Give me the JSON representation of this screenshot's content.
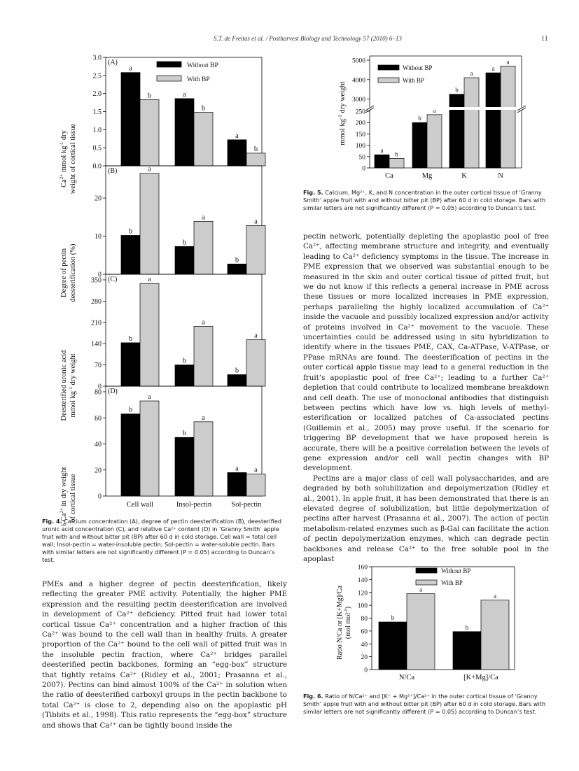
{
  "header": {
    "running_head": "S.T. de Freitas et al. / Postharvest Biology and Technology 57 (2010) 6–13",
    "page_number": "11"
  },
  "fig4": {
    "caption_label": "Fig. 4.",
    "caption_text": "Calcium concentration (A), degree of pectin deesterification (B), deesterified uronic acid concentration (C), and relative Ca²⁺ content (D) in ‘Granny Smith’ apple fruit with and without bitter pit (BP) after 60 d in cold storage. Cell wall = total cell wall; Insol-pectin = water-insoluble pectin; Sol-pectin = water-soluble pectin. Bars with similar letters are not significantly different (P = 0.05) according to Duncan’s test.",
    "legend": [
      "Without BP",
      "With BP"
    ]
  },
  "fig5": {
    "caption_label": "Fig. 5.",
    "caption_text": "Calcium, Mg²⁺, K, and N concentration in the outer cortical tissue of ‘Granny Smith’ apple fruit with and without bitter pit (BP) after 60 d in cold storage. Bars with similar letters are not significantly different (P = 0.05) according to Duncan’s test.",
    "legend": [
      "Without BP",
      "With BP"
    ]
  },
  "fig6": {
    "caption_label": "Fig. 6.",
    "caption_text": "Ratio of N/Ca²⁺ and [K⁺ + Mg²⁺]/Ca²⁺ in the outer cortical tissue of ‘Granny Smith’ apple fruit with and without bitter pit (BP) after 60 d in cold storage. Bars with similar letters are not significantly different (P = 0.05) according to Duncan’s test.",
    "legend": [
      "Without BP",
      "With BP"
    ]
  },
  "text": {
    "left_col": [
      "PMEs and a higher degree of pectin deesterification, likely reflecting the greater PME activity. Potentially, the higher PME expression and the resulting pectin deesterification are involved in development of Ca²⁺ deficiency. Pitted fruit had lower total cortical tissue Ca²⁺ concentration and a higher fraction of this Ca²⁺ was bound to the cell wall than in healthy fruits. A greater proportion of the Ca²⁺ bound to the cell wall of pitted fruit was in the insoluble pectin fraction, where Ca²⁺ bridges parallel deesterified pectin backbones, forming an “egg-box” structure that tightly retains Ca²⁺ (Ridley et al., 2001; Prasanna et al., 2007). Pectins can bind almost 100% of the Ca²⁺ in solution when the ratio of deesterified carboxyl groups in the pectin backbone to total Ca²⁺ is close to 2, depending also on the apoplastic pH (Tibbits et al., 1998). This ratio represents the “egg-box” structure and shows that Ca²⁺ can be tightly bound inside the"
    ],
    "right_col": [
      "pectin network, potentially depleting the apoplastic pool of free Ca²⁺, affecting membrane structure and integrity, and eventually leading to Ca²⁺ deficiency symptoms in the tissue. The increase in PME expression that we observed was substantial enough to be measured in the skin and outer cortical tissue of pitted fruit, but we do not know if this reflects a general increase in PME across these tissues or more localized increases in PME expression, perhaps paralleling the highly localized accumulation of Ca²⁺ inside the vacuole and possibly localized expression and/or activity of proteins involved in Ca²⁺ movement to the vacuole. These uncertainties could be addressed using in situ hybridization to identify where in the tissues PME, CAX, Ca-ATPase, V-ATPase, or PPase mRNAs are found. The deesterification of pectins in the outer cortical apple tissue may lead to a general reduction in the fruit’s apoplastic pool of free Ca²⁺; leading to a further Ca²⁺ depletion that could contribute to localized membrane breakdown and cell death. The use of monoclonal antibodies that distinguish between pectins which have low vs. high levels of methyl-esterification or localized patches of Ca-associated pectins (Guillemin et al., 2005) may prove useful. If the scenario for triggering BP development that we have proposed herein is accurate, there will be a positive correlation between the levels of gene expression and/or cell wall pectin changes with BP development.",
      "Pectins are a major class of cell wall polysaccharides, and are degraded by both solubilization and depolymerization (Ridley et al., 2001). In apple fruit, it has been demonstrated that there is an elevated degree of solubilization, but little depolymerization of pectins after harvest (Prasanna et al., 2007). The action of pectin metabolism-related enzymes such as β-Gal can facilitate the action of pectin depolymerization enzymes, which can degrade pectin backbones and release Ca²⁺ to the free soluble pool in the apoplast"
    ]
  },
  "chart_data": [
    {
      "id": "fig4A",
      "panel_label": "(A)",
      "type": "bar",
      "categories": [
        "Cell wall",
        "Insol-pectin",
        "Sol-pectin"
      ],
      "ylabel": "Ca²⁺ mmol kg⁻¹ dry weight of cortical tissue",
      "ylim": [
        0,
        3.0
      ],
      "yticks": [
        "0.0",
        "0.5",
        "1.0",
        "1.5",
        "2.0",
        "2.5",
        "3.0"
      ],
      "series": [
        {
          "name": "Without BP",
          "values": [
            2.58,
            1.86,
            0.72
          ],
          "letters": [
            "a",
            "a",
            "a"
          ]
        },
        {
          "name": "With BP",
          "values": [
            1.83,
            1.48,
            0.35
          ],
          "letters": [
            "b",
            "b",
            "b"
          ]
        }
      ]
    },
    {
      "id": "fig4B",
      "panel_label": "(B)",
      "type": "bar",
      "categories": [
        "Cell wall",
        "Insol-pectin",
        "Sol-pectin"
      ],
      "ylabel": "Degree of pectin deesterification (%)",
      "ylim": [
        0,
        27
      ],
      "yticks": [
        "0",
        "10",
        "20"
      ],
      "series": [
        {
          "name": "Without BP",
          "values": [
            10.2,
            7.3,
            2.7
          ],
          "letters": [
            "b",
            "b",
            "b"
          ]
        },
        {
          "name": "With BP",
          "values": [
            26.5,
            13.9,
            12.8
          ],
          "letters": [
            "a",
            "a",
            "a"
          ]
        }
      ]
    },
    {
      "id": "fig4C",
      "panel_label": "(C)",
      "type": "bar",
      "categories": [
        "Cell wall",
        "Insol-pectin",
        "Sol-pectin"
      ],
      "ylabel": "Deesterified uronic acid mmol kg⁻¹ dry weight",
      "ylim": [
        0,
        350
      ],
      "yticks": [
        "0",
        "70",
        "140",
        "210",
        "280",
        "350"
      ],
      "series": [
        {
          "name": "Without BP",
          "values": [
            143,
            70,
            38
          ],
          "letters": [
            "b",
            "b",
            "b"
          ]
        },
        {
          "name": "With BP",
          "values": [
            338,
            197,
            153
          ],
          "letters": [
            "a",
            "a",
            "a"
          ]
        }
      ]
    },
    {
      "id": "fig4D",
      "panel_label": "(D)",
      "type": "bar",
      "categories": [
        "Cell wall",
        "Insol-pectin",
        "Sol-pectin"
      ],
      "ylabel": "% Ca²⁺ in dry weight of cortical tissue",
      "ylim": [
        0,
        80
      ],
      "yticks": [
        "0",
        "20",
        "40",
        "60",
        "80"
      ],
      "series": [
        {
          "name": "Without BP",
          "values": [
            63,
            45,
            18
          ],
          "letters": [
            "b",
            "b",
            "a"
          ]
        },
        {
          "name": "With BP",
          "values": [
            73,
            57,
            17
          ],
          "letters": [
            "a",
            "a",
            "a"
          ]
        }
      ]
    },
    {
      "id": "fig5",
      "type": "bar",
      "categories": [
        "Ca",
        "Mg",
        "K",
        "N"
      ],
      "ylabel": "mmol kg⁻¹ dry weight",
      "broken_axis": true,
      "yticks_low": [
        "0",
        "50",
        "100",
        "150",
        "200",
        "250"
      ],
      "yticks_high": [
        "3000",
        "4000",
        "5000"
      ],
      "series": [
        {
          "name": "Without BP",
          "values": [
            58,
            200,
            3250,
            4350
          ],
          "letters": [
            "a",
            "b",
            "b",
            "a"
          ]
        },
        {
          "name": "With BP",
          "values": [
            42,
            235,
            4100,
            4700
          ],
          "letters": [
            "b",
            "a",
            "a",
            "a"
          ]
        }
      ]
    },
    {
      "id": "fig6",
      "type": "bar",
      "categories": [
        "N/Ca",
        "[K+Mg]/Ca"
      ],
      "ylabel": "Ratio N/Ca or [K+Mg]/Ca (mol mol⁻¹)",
      "ylim": [
        0,
        160
      ],
      "yticks": [
        "0",
        "20",
        "40",
        "60",
        "80",
        "100",
        "120",
        "140",
        "160"
      ],
      "series": [
        {
          "name": "Without BP",
          "values": [
            74,
            59
          ],
          "letters": [
            "b",
            "b"
          ]
        },
        {
          "name": "With BP",
          "values": [
            118,
            108
          ],
          "letters": [
            "a",
            "a"
          ]
        }
      ]
    }
  ]
}
